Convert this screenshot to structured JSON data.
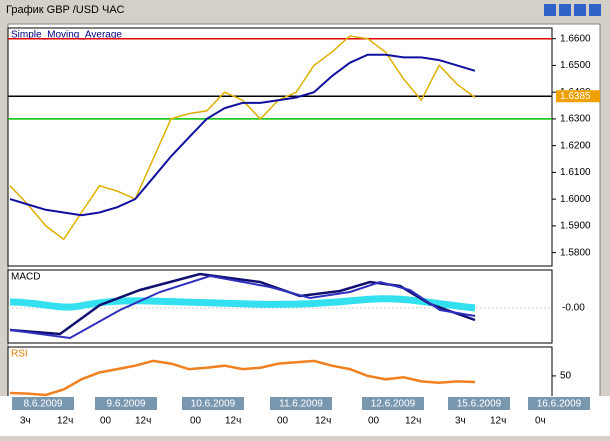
{
  "window": {
    "title": "График GBP /USD  ЧАС"
  },
  "main_panel": {
    "label": "Simple_Moving_Average",
    "ylim": [
      1.575,
      1.664
    ],
    "yticks": [
      {
        "value": 1.66,
        "label": "1.6600"
      },
      {
        "value": 1.65,
        "label": "1.6500"
      },
      {
        "value": 1.64,
        "label": "1.6400"
      },
      {
        "value": 1.63,
        "label": "1.6300"
      },
      {
        "value": 1.62,
        "label": "1.6200"
      },
      {
        "value": 1.61,
        "label": "1.6100"
      },
      {
        "value": 1.6,
        "label": "1.6000"
      },
      {
        "value": 1.59,
        "label": "1.5900"
      },
      {
        "value": 1.58,
        "label": "1.5800"
      }
    ],
    "levels": [
      {
        "value": 1.66,
        "color": "#e00000"
      },
      {
        "value": 1.6385,
        "color": "#000000"
      },
      {
        "value": 1.63,
        "color": "#00c000"
      }
    ],
    "current_price": {
      "value": 1.6385,
      "label": "1.6385"
    },
    "price": [
      1.605,
      1.598,
      1.59,
      1.585,
      1.595,
      1.605,
      1.603,
      1.6,
      1.615,
      1.63,
      1.632,
      1.633,
      1.64,
      1.637,
      1.63,
      1.637,
      1.64,
      1.65,
      1.655,
      1.661,
      1.66,
      1.655,
      1.645,
      1.637,
      1.65,
      1.643,
      1.638
    ],
    "sma": [
      1.6,
      1.598,
      1.596,
      1.595,
      1.594,
      1.595,
      1.597,
      1.6,
      1.608,
      1.616,
      1.623,
      1.63,
      1.634,
      1.636,
      1.636,
      1.637,
      1.638,
      1.64,
      1.646,
      1.651,
      1.654,
      1.654,
      1.653,
      1.653,
      1.652,
      1.65,
      1.648
    ]
  },
  "macd_panel": {
    "label": "MACD",
    "tick": "-0.00"
  },
  "rsi_panel": {
    "label": "RSI",
    "ylim": [
      22,
      88
    ],
    "yticks": [
      50
    ],
    "values": [
      25,
      24,
      22,
      30,
      45,
      55,
      60,
      65,
      72,
      68,
      60,
      62,
      65,
      60,
      62,
      68,
      70,
      72,
      65,
      60,
      50,
      45,
      48,
      42,
      40,
      42,
      41
    ]
  },
  "dates": [
    "8.6.2009",
    "9.6.2009",
    "10.6.2009",
    "11.6.2009",
    "12.6.2009",
    "15.6.2009",
    "16.6.2009"
  ],
  "hours": [
    "3ч",
    "12ч",
    "00",
    "12ч",
    "00",
    "12ч",
    "00",
    "12ч",
    "00",
    "12ч",
    "3ч",
    "12ч",
    "0ч"
  ]
}
